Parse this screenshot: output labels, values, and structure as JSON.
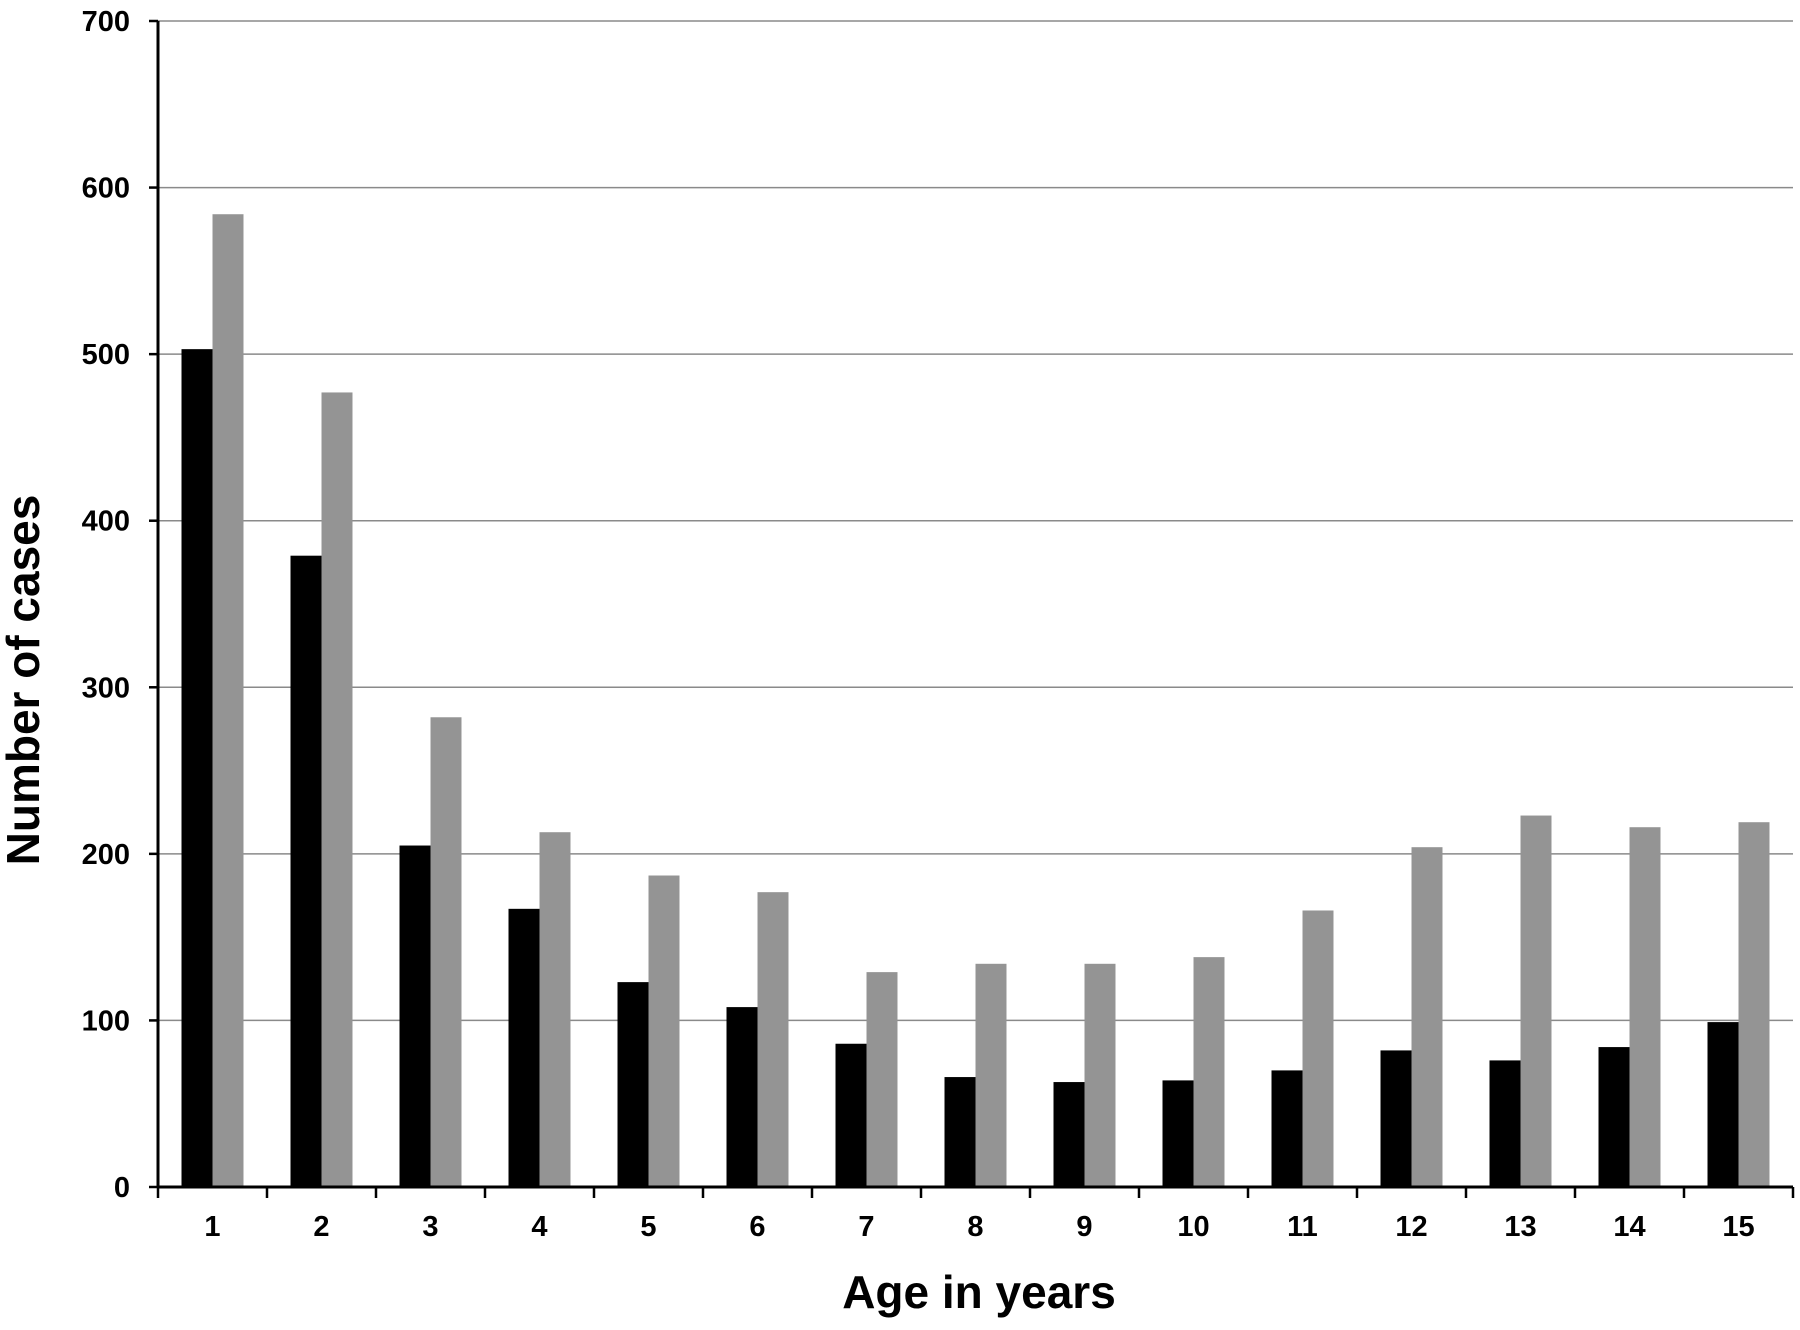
{
  "chart_data": {
    "type": "bar",
    "title": "",
    "xlabel": "Age in years",
    "ylabel": "Number of cases",
    "ylim": [
      0,
      700
    ],
    "yticks": [
      "0",
      "100",
      "200",
      "300",
      "400",
      "500",
      "600",
      "700"
    ],
    "grid": true,
    "legend": "none",
    "categories": [
      "1",
      "2",
      "3",
      "4",
      "5",
      "6",
      "7",
      "8",
      "9",
      "10",
      "11",
      "12",
      "13",
      "14",
      "15"
    ],
    "series": [
      {
        "color": "#000000",
        "values": [
          503,
          379,
          205,
          167,
          123,
          108,
          86,
          66,
          63,
          64,
          70,
          82,
          76,
          84,
          99
        ]
      },
      {
        "color": "#949494",
        "values": [
          584,
          477,
          282,
          213,
          187,
          177,
          129,
          134,
          134,
          138,
          166,
          204,
          223,
          216,
          219
        ]
      }
    ]
  }
}
